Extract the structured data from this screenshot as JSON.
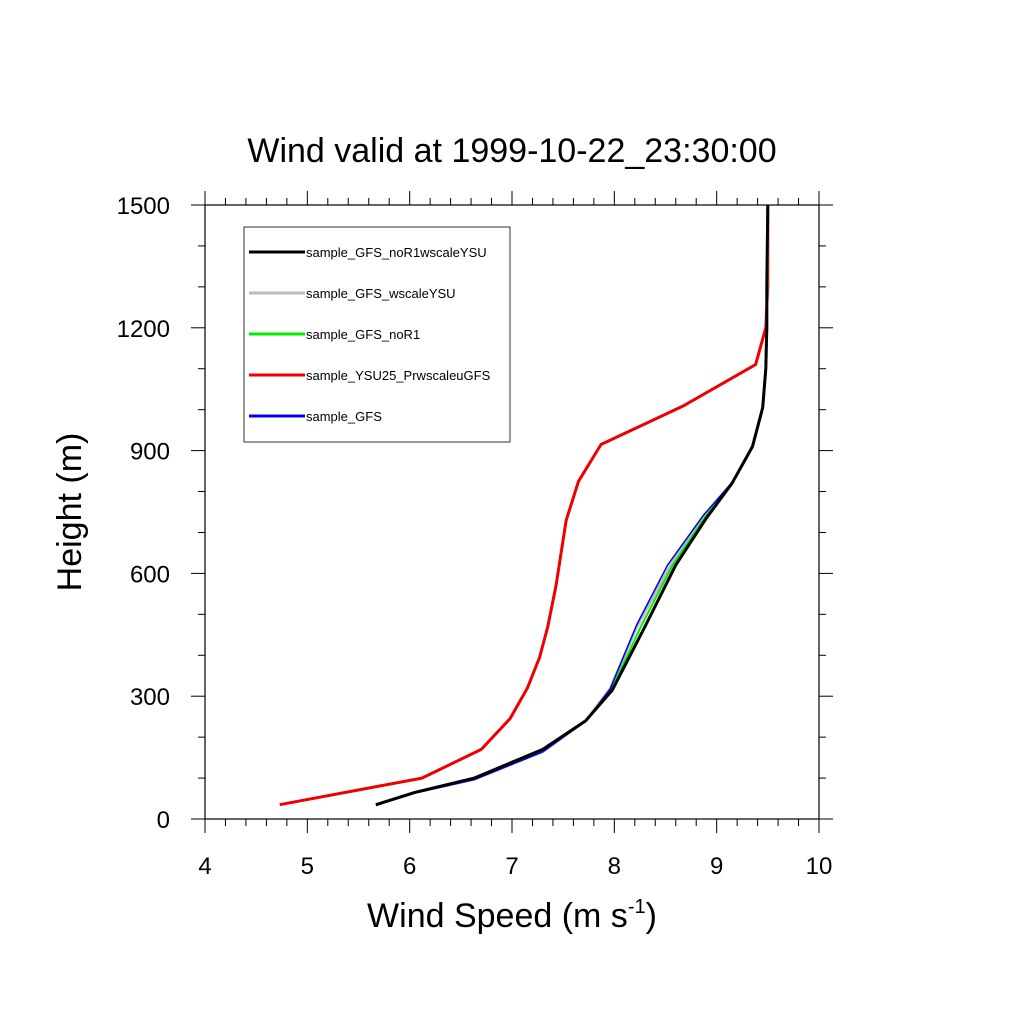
{
  "chart_data": {
    "type": "line",
    "title": "Wind valid at 1999-10-22_23:30:00",
    "xlabel": "Wind Speed (m s",
    "xlabel_superscript": "-1",
    "xlabel_suffix": ")",
    "ylabel": "Height (m)",
    "xlim": [
      4,
      10
    ],
    "ylim": [
      0,
      1500
    ],
    "xticks": [
      "4",
      "5",
      "6",
      "7",
      "8",
      "9",
      "10"
    ],
    "yticks": [
      "0",
      "300",
      "600",
      "900",
      "1200",
      "1500"
    ],
    "grid": false,
    "legend_position": "top-left",
    "series": [
      {
        "name": "sample_GFS_noR1wscaleYSU",
        "color": "#000000",
        "width": 3,
        "points": [
          [
            5.67,
            35
          ],
          [
            6.05,
            65
          ],
          [
            6.63,
            100
          ],
          [
            7.3,
            170
          ],
          [
            7.72,
            240
          ],
          [
            7.98,
            315
          ],
          [
            8.3,
            470
          ],
          [
            8.6,
            620
          ],
          [
            8.9,
            735
          ],
          [
            9.15,
            820
          ],
          [
            9.35,
            910
          ],
          [
            9.45,
            1005
          ],
          [
            9.48,
            1100
          ],
          [
            9.49,
            1200
          ],
          [
            9.49,
            1300
          ],
          [
            9.5,
            1500
          ]
        ]
      },
      {
        "name": "sample_GFS_wscaleYSU",
        "color": "#bbbbbb",
        "width": 3,
        "points": [
          [
            5.67,
            35
          ],
          [
            6.05,
            65
          ],
          [
            6.63,
            97
          ],
          [
            7.3,
            165
          ],
          [
            7.72,
            240
          ],
          [
            7.96,
            318
          ],
          [
            8.22,
            470
          ],
          [
            8.55,
            620
          ],
          [
            8.88,
            740
          ],
          [
            9.15,
            820
          ],
          [
            9.35,
            910
          ],
          [
            9.45,
            1005
          ],
          [
            9.48,
            1100
          ],
          [
            9.49,
            1200
          ],
          [
            9.5,
            1500
          ]
        ]
      },
      {
        "name": "sample_GFS_noR1",
        "color": "#00ee00",
        "width": 2,
        "points": [
          [
            5.67,
            35
          ],
          [
            6.05,
            65
          ],
          [
            6.63,
            99
          ],
          [
            7.3,
            168
          ],
          [
            7.72,
            240
          ],
          [
            7.97,
            316
          ],
          [
            8.26,
            470
          ],
          [
            8.57,
            620
          ],
          [
            8.89,
            738
          ],
          [
            9.15,
            820
          ],
          [
            9.35,
            910
          ],
          [
            9.45,
            1005
          ],
          [
            9.48,
            1100
          ],
          [
            9.49,
            1200
          ],
          [
            9.5,
            1500
          ]
        ]
      },
      {
        "name": "sample_YSU25_PrwscaleuGFS",
        "color": "#ee0000",
        "width": 3,
        "points": [
          [
            4.73,
            35
          ],
          [
            6.12,
            100
          ],
          [
            6.7,
            170
          ],
          [
            6.98,
            245
          ],
          [
            7.15,
            320
          ],
          [
            7.27,
            395
          ],
          [
            7.35,
            470
          ],
          [
            7.43,
            570
          ],
          [
            7.53,
            730
          ],
          [
            7.65,
            825
          ],
          [
            7.87,
            915
          ],
          [
            8.68,
            1010
          ],
          [
            9.38,
            1110
          ],
          [
            9.48,
            1200
          ],
          [
            9.5,
            1300
          ],
          [
            9.5,
            1500
          ]
        ]
      },
      {
        "name": "sample_GFS",
        "color": "#0000ee",
        "width": 1.5,
        "points": [
          [
            5.67,
            33
          ],
          [
            6.05,
            63
          ],
          [
            6.63,
            96
          ],
          [
            7.3,
            164
          ],
          [
            7.72,
            239
          ],
          [
            7.96,
            318
          ],
          [
            8.22,
            475
          ],
          [
            8.52,
            620
          ],
          [
            8.87,
            742
          ],
          [
            9.15,
            822
          ],
          [
            9.35,
            912
          ],
          [
            9.45,
            1005
          ],
          [
            9.48,
            1100
          ],
          [
            9.49,
            1200
          ],
          [
            9.5,
            1500
          ]
        ]
      }
    ]
  }
}
